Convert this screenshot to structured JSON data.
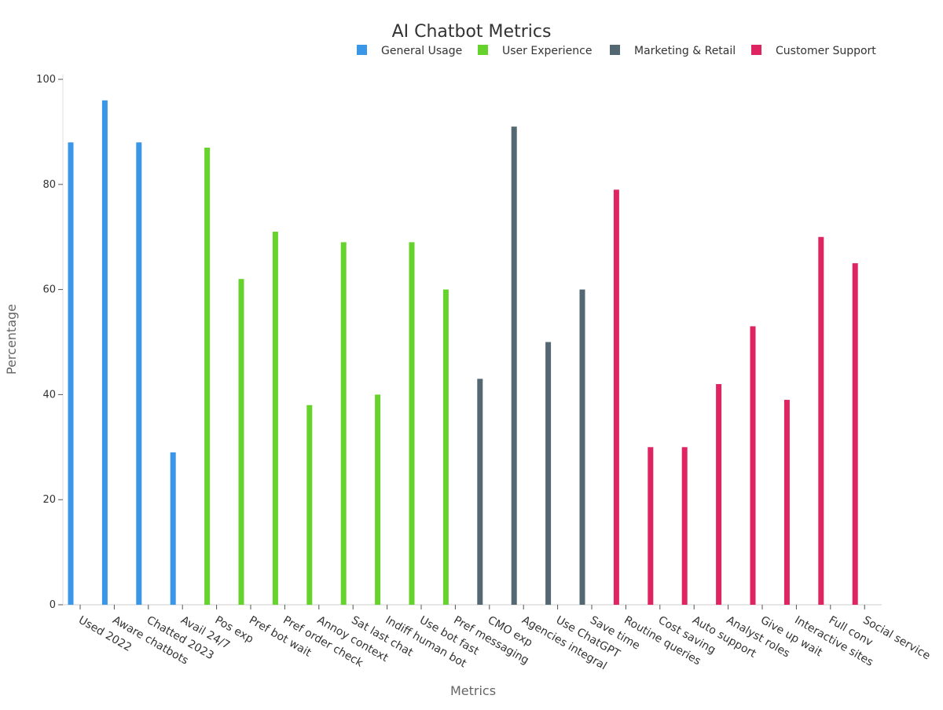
{
  "chart_data": {
    "type": "bar",
    "title": "AI Chatbot Metrics",
    "xlabel": "Metrics",
    "ylabel": "Percentage",
    "ylim": [
      0,
      100
    ],
    "yticks": [
      0,
      20,
      40,
      60,
      80,
      100
    ],
    "grid": false,
    "legend_position": "top-right",
    "categories": [
      "Used 2022",
      "Aware chatbots",
      "Chatted 2023",
      "Avail 24/7",
      "Pos exp",
      "Pref bot wait",
      "Pref order check",
      "Annoy context",
      "Sat last chat",
      "Indiff human bot",
      "Use bot fast",
      "Pref messaging",
      "CMO exp",
      "Agencies integral",
      "Use ChatGPT",
      "Save time",
      "Routine queries",
      "Cost saving",
      "Auto support",
      "Analyst roles",
      "Give up wait",
      "Interactive sites",
      "Full conv",
      "Social service"
    ],
    "series": [
      {
        "name": "General Usage",
        "color": "#3a96e6",
        "values": [
          88,
          96,
          88,
          29,
          null,
          null,
          null,
          null,
          null,
          null,
          null,
          null,
          null,
          null,
          null,
          null,
          null,
          null,
          null,
          null,
          null,
          null,
          null,
          null
        ]
      },
      {
        "name": "User Experience",
        "color": "#66d22c",
        "values": [
          null,
          null,
          null,
          null,
          87,
          62,
          71,
          38,
          69,
          40,
          69,
          60,
          null,
          null,
          null,
          null,
          null,
          null,
          null,
          null,
          null,
          null,
          null,
          null
        ]
      },
      {
        "name": "Marketing & Retail",
        "color": "#536873",
        "values": [
          null,
          null,
          null,
          null,
          null,
          null,
          null,
          null,
          null,
          null,
          null,
          null,
          43,
          91,
          50,
          60,
          null,
          null,
          null,
          null,
          null,
          null,
          null,
          null
        ]
      },
      {
        "name": "Customer Support",
        "color": "#de2461",
        "values": [
          null,
          null,
          null,
          null,
          null,
          null,
          null,
          null,
          null,
          null,
          null,
          null,
          null,
          null,
          null,
          null,
          79,
          30,
          30,
          42,
          53,
          39,
          70,
          65
        ]
      }
    ]
  }
}
